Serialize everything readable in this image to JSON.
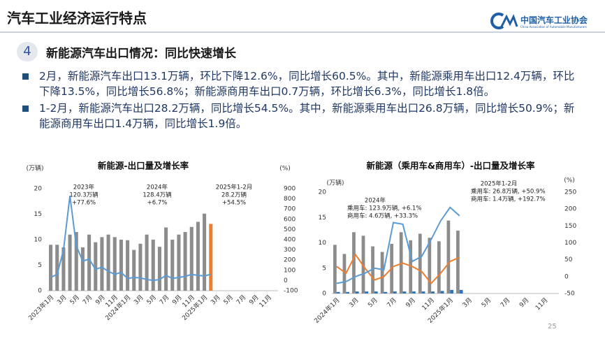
{
  "header": {
    "title": "汽车工业经济运行特点",
    "org_name": "中国汽车工业协会",
    "org_name_en": "China Association of Automobile Manufacturers"
  },
  "section": {
    "number": "4",
    "title": "新能源汽车出口情况：同比快速增长"
  },
  "bullets": [
    "2月，新能源汽车出口13.1万辆，环比下降12.6%，同比增长60.5%。其中，新能源乘用车出口12.4万辆，环比下降13.5%，同比增长56.8%；新能源商用车出口0.7万辆，环比增长6.3%，同比增长1.8倍。",
    "1-2月，新能源汽车出口28.2万辆，同比增长54.5%。其中，新能源乘用车出口26.8万辆，同比增长50.9%；新能源商用车出口1.4万辆，同比增长1.9倍。"
  ],
  "page_number": "25",
  "chart_data": [
    {
      "type": "combo",
      "title": "新能源-出口量及增长率",
      "y_label": "(万辆)",
      "y2_label": "(%)",
      "bar_mode": "overlay",
      "grid": false,
      "categories": [
        "2023年1月",
        null,
        "3月",
        null,
        "5月",
        null,
        "7月",
        null,
        "9月",
        null,
        "11月",
        null,
        "2024年1月",
        null,
        "3月",
        null,
        "5月",
        null,
        "7月",
        null,
        "9月",
        null,
        "11月",
        null,
        "2025年1月",
        null,
        "3月",
        null,
        "5月",
        null,
        "7月",
        null,
        "9月",
        null,
        "11月",
        null
      ],
      "ylim": [
        0,
        20
      ],
      "yticks": [
        0,
        5,
        10,
        15,
        20
      ],
      "y2lim": [
        -100,
        900
      ],
      "y2ticks": [
        -100,
        0,
        100,
        200,
        300,
        400,
        500,
        600,
        700,
        800,
        900
      ],
      "series": [
        {
          "type": "bar",
          "color": "#8c8c8c",
          "values": [
            9,
            9,
            8.5,
            11,
            11.5,
            8.5,
            11,
            9.5,
            10.5,
            11,
            10.5,
            10,
            9.9,
            8,
            9.2,
            11,
            10,
            8.6,
            12.4,
            10,
            11,
            11.5,
            12.5,
            13.5,
            15.1,
            null,
            null,
            null,
            null,
            null,
            null,
            null,
            null,
            null,
            null,
            null
          ]
        },
        {
          "type": "bar",
          "color": "#ed7d31",
          "values": [
            null,
            null,
            null,
            null,
            null,
            null,
            null,
            null,
            null,
            null,
            null,
            null,
            null,
            null,
            null,
            null,
            null,
            null,
            null,
            null,
            null,
            null,
            null,
            null,
            null,
            13.1,
            null,
            null,
            null,
            null,
            null,
            null,
            null,
            null,
            null,
            null
          ]
        },
        {
          "type": "line",
          "axis": "y2",
          "color": "#5b9bd5",
          "values": [
            30,
            60,
            300,
            830,
            340,
            190,
            210,
            110,
            130,
            90,
            60,
            80,
            20,
            30,
            25,
            10,
            0,
            10,
            50,
            20,
            30,
            40,
            60,
            50,
            45,
            60.5,
            null,
            null,
            null,
            null,
            null,
            null,
            null,
            null,
            null,
            null
          ]
        }
      ],
      "annotations": [
        [
          "2023年",
          "120.3万辆",
          "+77.6%"
        ],
        [
          "2024年",
          "128.4万辆",
          "+6.7%"
        ],
        [
          "2025年1-2月",
          "28.2万辆",
          "+54.5%"
        ]
      ]
    },
    {
      "type": "combo",
      "title": "新能源（乘用车&商用车）-出口量及增长率",
      "y_label": "(万辆)",
      "y2_label": "(%)",
      "bar_mode": "grouped",
      "grid": false,
      "categories": [
        "2024年1月",
        null,
        "3月",
        null,
        "5月",
        null,
        "7月",
        null,
        "9月",
        null,
        "11月",
        null,
        "2025年1月",
        null,
        "3月",
        null,
        "5月",
        null,
        "7月",
        null,
        "9月",
        null,
        "11月",
        null
      ],
      "ylim": [
        0,
        20
      ],
      "yticks": [
        0,
        5,
        10,
        15,
        20
      ],
      "y2lim": [
        -50,
        250
      ],
      "y2ticks": [
        -50,
        0,
        50,
        100,
        150,
        200,
        250
      ],
      "series": [
        {
          "type": "bar",
          "color": "#8c8c8c",
          "values": [
            9.6,
            7.8,
            12.1,
            11.4,
            9.3,
            8.2,
            9.8,
            12.1,
            10.5,
            11.8,
            11.0,
            10.3,
            14.4,
            12.4,
            null,
            null,
            null,
            null,
            null,
            null,
            null,
            null,
            null,
            null
          ]
        },
        {
          "type": "bar",
          "color": "#2e75b6",
          "values": [
            0.3,
            0.3,
            0.4,
            0.4,
            0.4,
            0.3,
            0.4,
            0.4,
            0.4,
            0.4,
            0.4,
            0.5,
            0.7,
            0.7,
            null,
            null,
            null,
            null,
            null,
            null,
            null,
            null,
            null,
            null
          ]
        },
        {
          "type": "line",
          "axis": "y2",
          "color": "#ed7d31",
          "values": [
            30,
            10,
            65,
            25,
            -10,
            0,
            30,
            40,
            30,
            15,
            -20,
            10,
            45,
            57,
            null,
            null,
            null,
            null,
            null,
            null,
            null,
            null,
            null,
            null
          ]
        },
        {
          "type": "line",
          "axis": "y2",
          "color": "#5b9bd5",
          "values": [
            -20,
            -15,
            0,
            10,
            25,
            20,
            160,
            155,
            45,
            60,
            110,
            165,
            205,
            180,
            null,
            null,
            null,
            null,
            null,
            null,
            null,
            null,
            null,
            null
          ]
        }
      ],
      "annotations": [
        [
          "2024年",
          "乘用车:  123.9万辆, +6.1%",
          "商用车:  4.6万辆, +33.3%"
        ],
        [
          "2025年1-2月",
          "乘用车:  26.8万辆, +50.9%",
          "商用车:  1.4万辆, +192.7%"
        ]
      ]
    }
  ]
}
